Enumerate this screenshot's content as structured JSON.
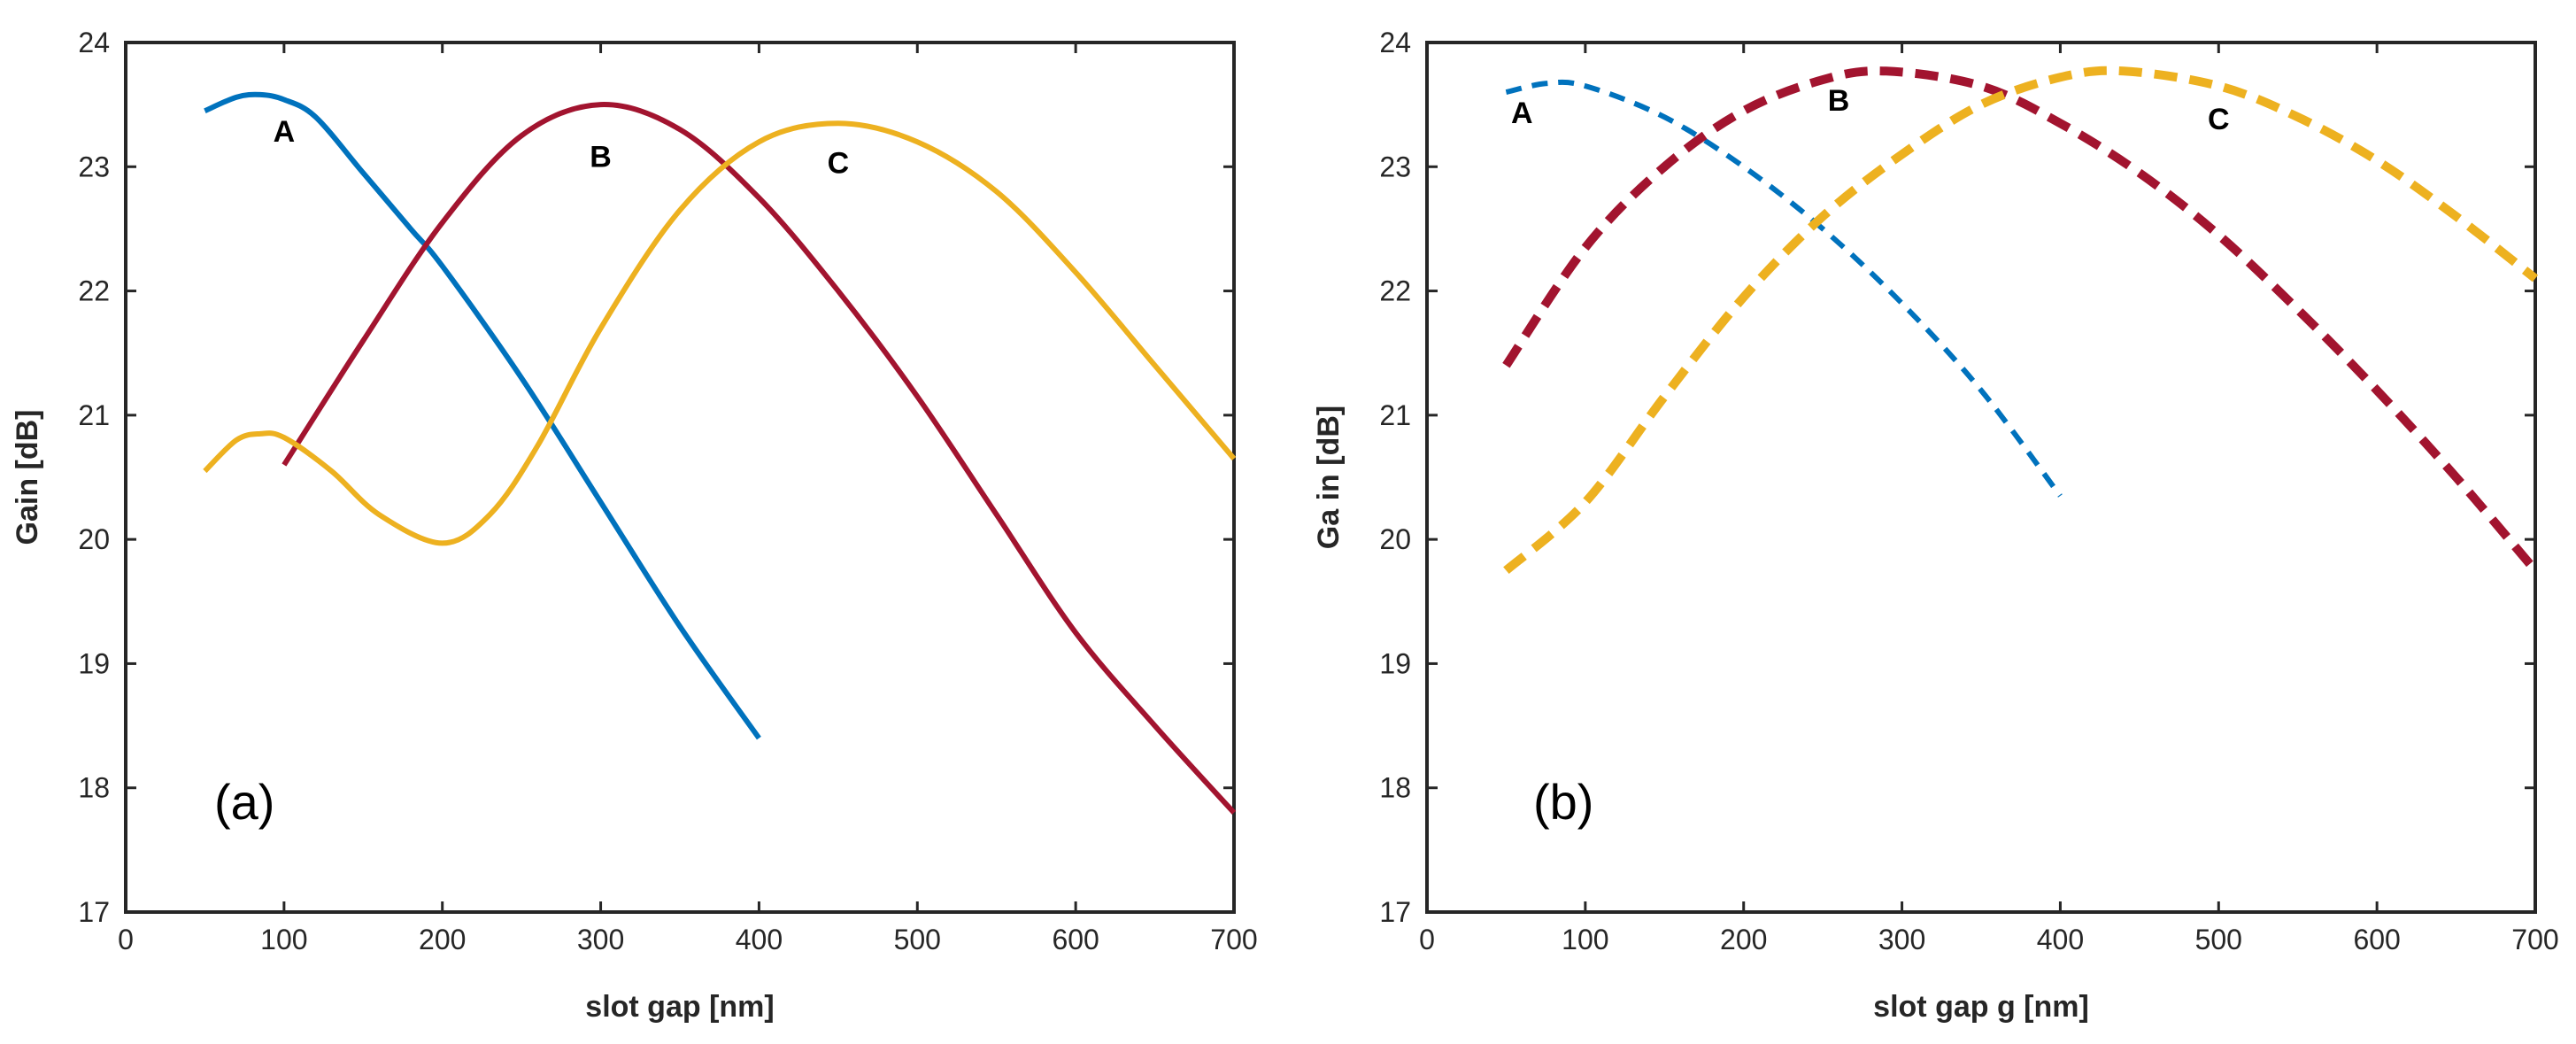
{
  "chart_data": [
    {
      "type": "line",
      "panel_label": "(a)",
      "xlabel": "slot gap [nm]",
      "ylabel": "Gain [dB]",
      "xlim": [
        0,
        700
      ],
      "ylim": [
        17,
        24
      ],
      "xticks": [
        "0",
        "100",
        "200",
        "300",
        "400",
        "500",
        "600",
        "700"
      ],
      "yticks": [
        "17",
        "18",
        "19",
        "20",
        "21",
        "22",
        "23",
        "24"
      ],
      "series": [
        {
          "name": "A",
          "color": "#0072BD",
          "dashed": false,
          "label_at": [
            100,
            23.2
          ],
          "x": [
            50,
            70,
            85,
            100,
            120,
            150,
            180,
            200,
            250,
            300,
            350,
            400
          ],
          "y": [
            23.45,
            23.56,
            23.58,
            23.54,
            23.4,
            22.95,
            22.5,
            22.2,
            21.3,
            20.3,
            19.3,
            18.4
          ]
        },
        {
          "name": "B",
          "color": "#A2142F",
          "dashed": false,
          "label_at": [
            300,
            23.0
          ],
          "x": [
            100,
            150,
            200,
            250,
            300,
            350,
            400,
            450,
            500,
            550,
            600,
            650,
            700
          ],
          "y": [
            20.6,
            21.6,
            22.55,
            23.25,
            23.5,
            23.3,
            22.75,
            22.0,
            21.15,
            20.2,
            19.25,
            18.5,
            17.8
          ]
        },
        {
          "name": "C",
          "color": "#EDB120",
          "dashed": false,
          "label_at": [
            450,
            22.95
          ],
          "x": [
            50,
            70,
            85,
            100,
            130,
            160,
            200,
            230,
            260,
            300,
            350,
            400,
            450,
            500,
            550,
            600,
            650,
            700
          ],
          "y": [
            20.55,
            20.8,
            20.85,
            20.82,
            20.55,
            20.2,
            19.97,
            20.2,
            20.75,
            21.7,
            22.65,
            23.2,
            23.35,
            23.2,
            22.8,
            22.15,
            21.4,
            20.65
          ]
        }
      ]
    },
    {
      "type": "line",
      "panel_label": "(b)",
      "xlabel": "slot gap g [nm]",
      "ylabel": "Ga in [dB]",
      "xlim": [
        0,
        700
      ],
      "ylim": [
        17,
        24
      ],
      "xticks": [
        "0",
        "100",
        "200",
        "300",
        "400",
        "500",
        "600",
        "700"
      ],
      "yticks": [
        "17",
        "18",
        "19",
        "20",
        "21",
        "22",
        "23",
        "24"
      ],
      "series": [
        {
          "name": "A",
          "color": "#0072BD",
          "dashed": true,
          "label_at": [
            60,
            23.35
          ],
          "x": [
            50,
            75,
            100,
            150,
            200,
            250,
            300,
            350,
            400
          ],
          "y": [
            23.6,
            23.67,
            23.65,
            23.4,
            23.0,
            22.5,
            21.9,
            21.2,
            20.35
          ]
        },
        {
          "name": "B",
          "color": "#A2142F",
          "dashed": true,
          "label_at": [
            260,
            23.45
          ],
          "x": [
            50,
            100,
            150,
            200,
            250,
            290,
            350,
            400,
            450,
            500,
            550,
            600,
            650,
            700
          ],
          "y": [
            21.4,
            22.35,
            23.0,
            23.45,
            23.7,
            23.77,
            23.65,
            23.35,
            22.95,
            22.45,
            21.85,
            21.2,
            20.5,
            19.75
          ]
        },
        {
          "name": "C",
          "color": "#EDB120",
          "dashed": true,
          "label_at": [
            500,
            23.3
          ],
          "x": [
            50,
            100,
            150,
            200,
            250,
            300,
            350,
            400,
            440,
            500,
            550,
            600,
            650,
            700
          ],
          "y": [
            19.75,
            20.3,
            21.15,
            21.95,
            22.6,
            23.1,
            23.5,
            23.72,
            23.77,
            23.65,
            23.4,
            23.05,
            22.6,
            22.1
          ]
        }
      ]
    }
  ]
}
